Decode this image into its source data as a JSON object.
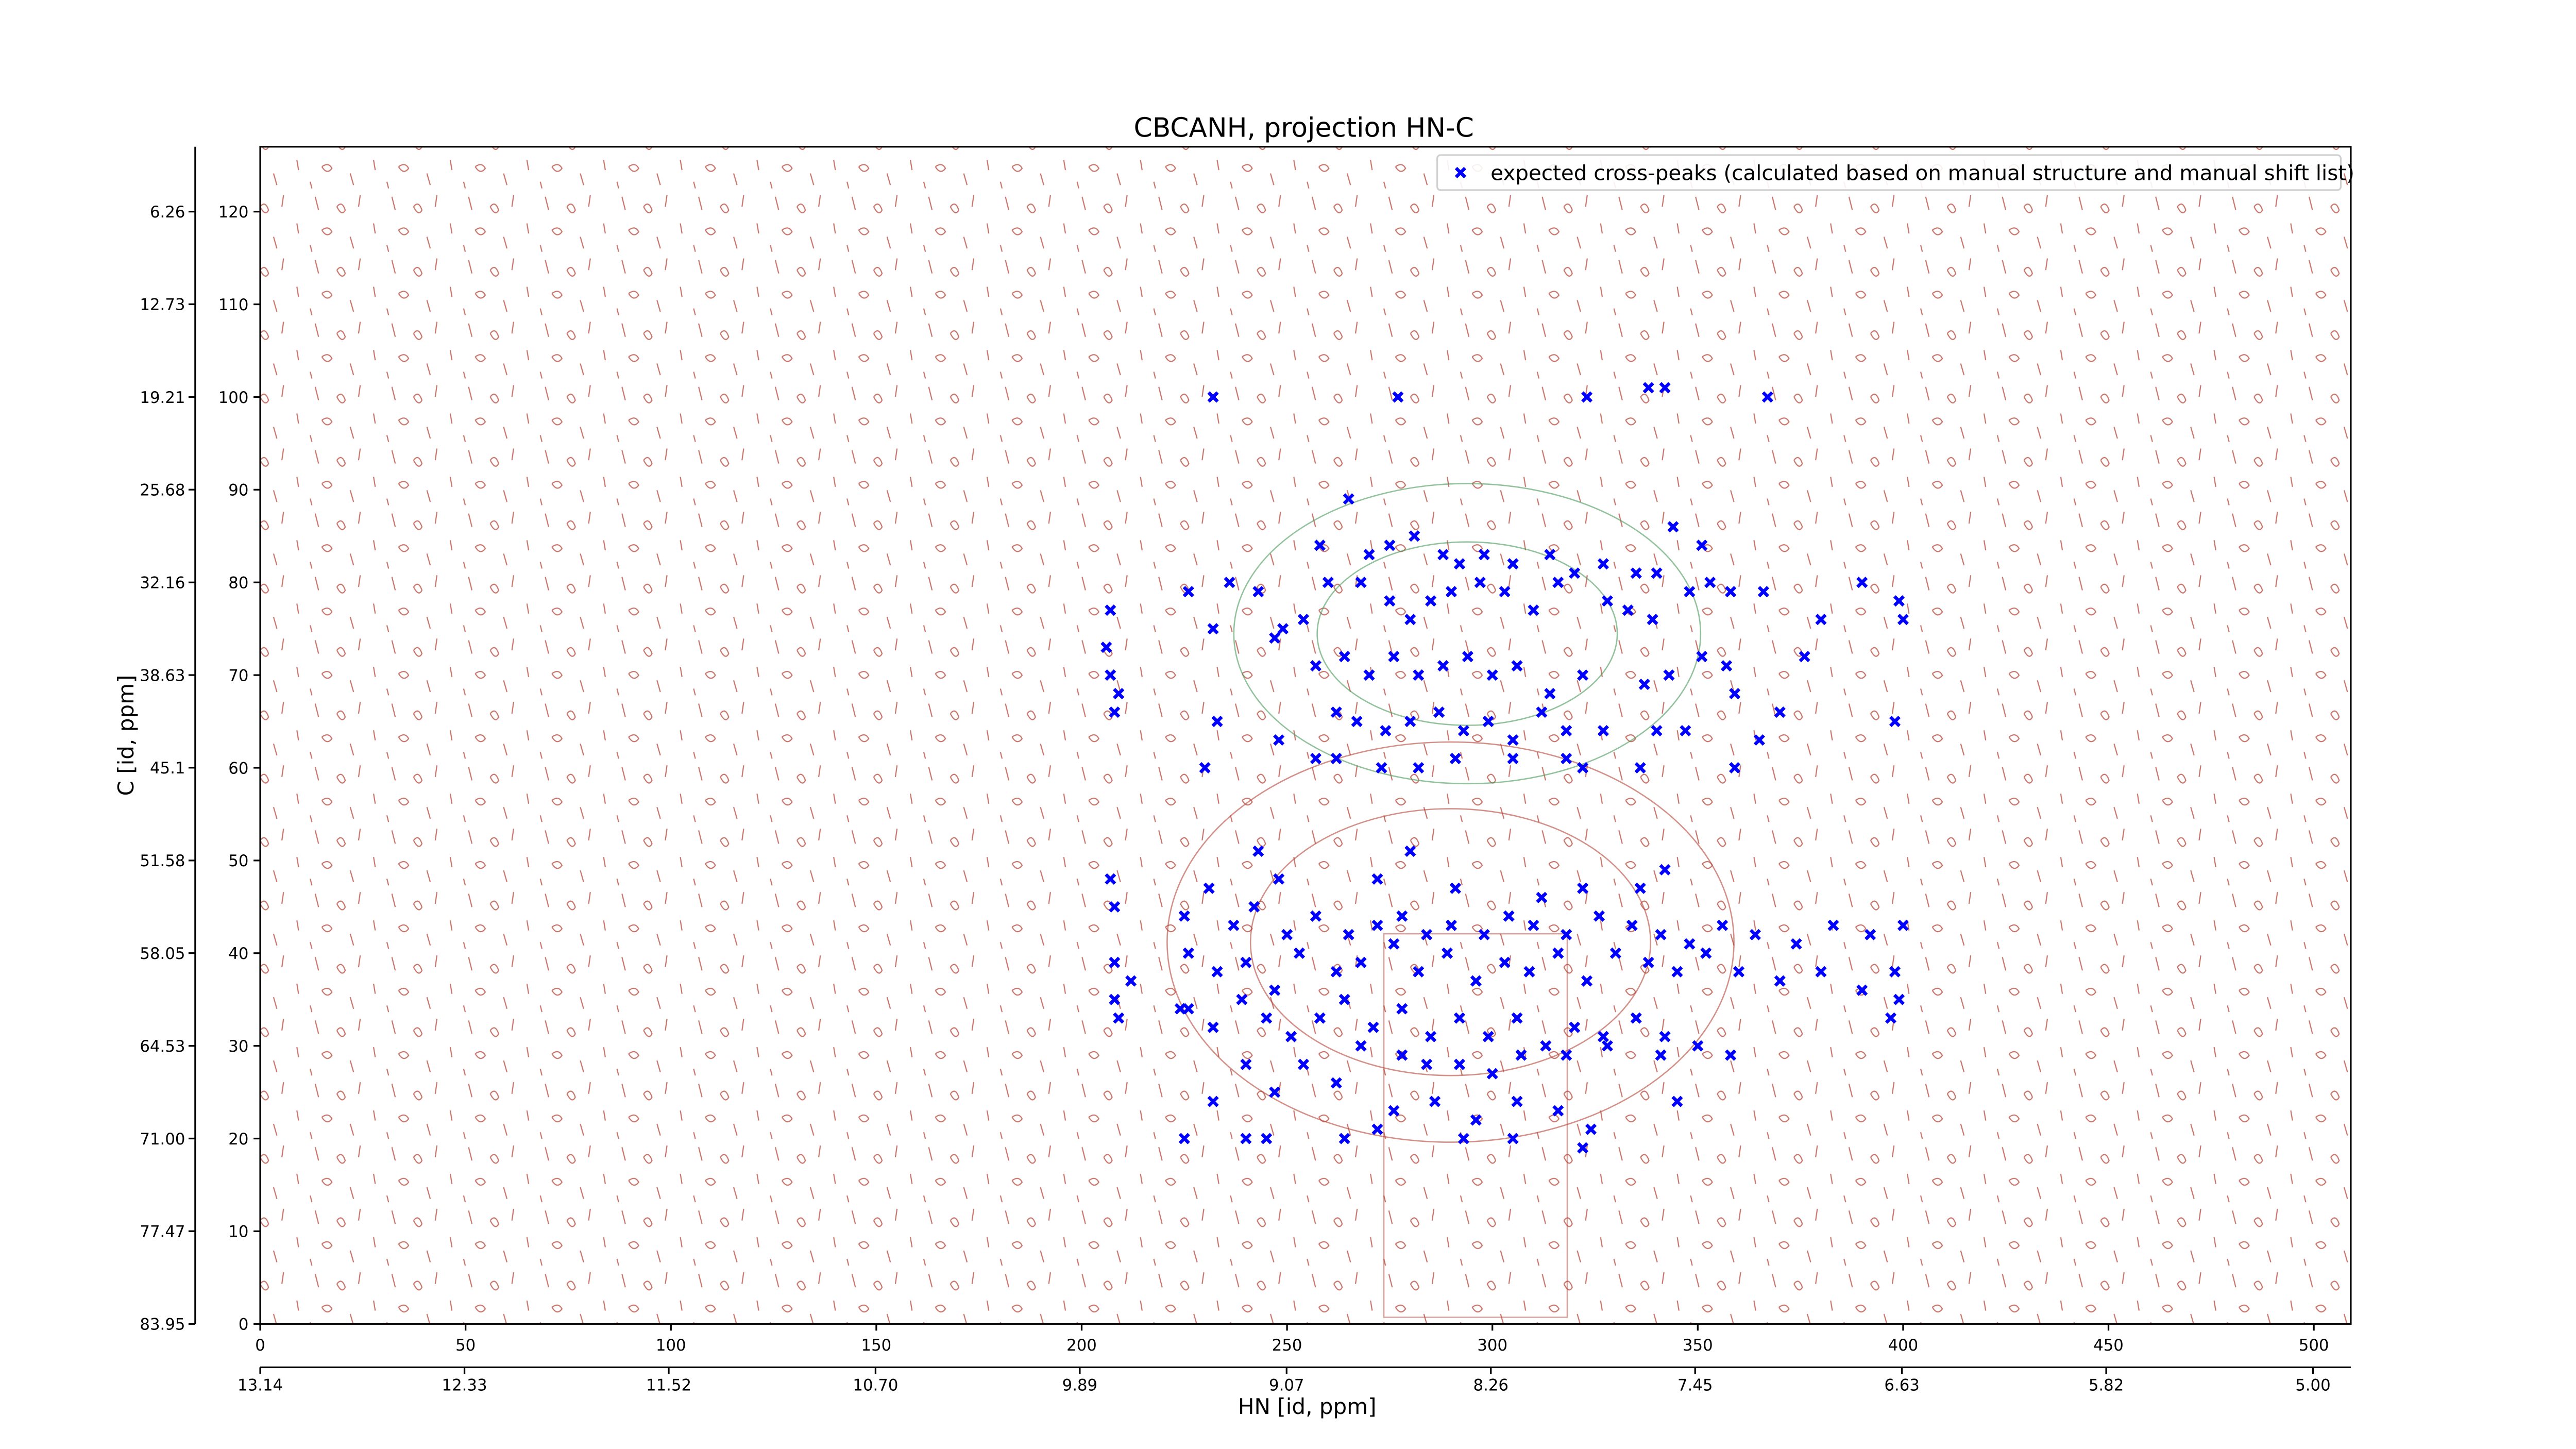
{
  "chart_data": {
    "type": "scatter",
    "title": "CBCANH, projection HN-C",
    "xlabel": "HN [id, ppm]",
    "ylabel": "C [id, ppm]",
    "xlim": [
      0,
      509
    ],
    "xticks": [
      0,
      50,
      100,
      150,
      200,
      250,
      300,
      350,
      400,
      450,
      500
    ],
    "ylim": [
      0,
      127
    ],
    "yticks": [
      0,
      10,
      20,
      30,
      40,
      50,
      60,
      70,
      80,
      90,
      100,
      110,
      120
    ],
    "x2lim": [
      13.14,
      4.85
    ],
    "x2ticks": [
      13.14,
      12.33,
      11.52,
      {
        "value": 10.7,
        "label": "10.70"
      },
      9.89,
      9.07,
      8.26,
      7.45,
      6.63,
      5.82,
      {
        "value": 5,
        "label": "5.00"
      }
    ],
    "y2lim": [
      83.95,
      1.73
    ],
    "y2ticks": [
      83.95,
      77.47,
      {
        "value": 71,
        "label": "71.00"
      },
      64.53,
      58.05,
      51.58,
      45.1,
      38.63,
      32.16,
      25.68,
      19.21,
      12.73,
      6.26
    ],
    "legend": "upper right",
    "series": [
      {
        "name": "expected cross-peaks (calculated based on manual structure and manual shift list)",
        "color": "#0000ff",
        "x": [
          232,
          277,
          323,
          338,
          342,
          367,
          265,
          258,
          270,
          275,
          281,
          288,
          292,
          298,
          305,
          314,
          320,
          327,
          335,
          340,
          344,
          351,
          353,
          348,
          358,
          366,
          376,
          380,
          390,
          399,
          400,
          226,
          236,
          232,
          243,
          247,
          254,
          260,
          268,
          275,
          280,
          285,
          290,
          297,
          303,
          310,
          316,
          328,
          333,
          339,
          207,
          206,
          207,
          209,
          208,
          249,
          264,
          257,
          270,
          276,
          282,
          288,
          294,
          300,
          306,
          314,
          322,
          337,
          343,
          351,
          357,
          359,
          370,
          233,
          248,
          262,
          267,
          274,
          280,
          287,
          293,
          299,
          305,
          312,
          318,
          327,
          340,
          347,
          365,
          398,
          230,
          257,
          262,
          273,
          282,
          291,
          305,
          318,
          322,
          336,
          359,
          243,
          231,
          207,
          208,
          242,
          248,
          272,
          280,
          291,
          312,
          322,
          336,
          342,
          225,
          237,
          250,
          257,
          265,
          272,
          278,
          284,
          290,
          298,
          304,
          310,
          318,
          326,
          334,
          341,
          348,
          356,
          364,
          374,
          383,
          392,
          400,
          208,
          212,
          226,
          233,
          240,
          247,
          253,
          262,
          268,
          276,
          282,
          289,
          296,
          303,
          309,
          316,
          323,
          330,
          338,
          345,
          352,
          360,
          370,
          380,
          390,
          398,
          208,
          209,
          226,
          232,
          239,
          245,
          251,
          258,
          264,
          271,
          278,
          285,
          292,
          299,
          306,
          313,
          320,
          327,
          335,
          342,
          350,
          397,
          399,
          224,
          240,
          254,
          268,
          278,
          284,
          292,
          300,
          307,
          318,
          328,
          341,
          358,
          232,
          247,
          262,
          276,
          286,
          296,
          306,
          316,
          324,
          345,
          225,
          240,
          245,
          264,
          272,
          293,
          305,
          322
        ],
        "values": [
          100,
          100,
          100,
          101,
          101,
          100,
          89,
          84,
          83,
          84,
          85,
          83,
          82,
          83,
          82,
          83,
          81,
          82,
          81,
          81,
          86,
          84,
          80,
          79,
          79,
          79,
          72,
          76,
          80,
          78,
          76,
          79,
          80,
          75,
          79,
          74,
          76,
          80,
          80,
          78,
          76,
          78,
          79,
          80,
          79,
          77,
          80,
          78,
          77,
          76,
          77,
          73,
          70,
          68,
          66,
          75,
          72,
          71,
          70,
          72,
          70,
          71,
          72,
          70,
          71,
          68,
          70,
          69,
          70,
          72,
          71,
          68,
          66,
          65,
          63,
          66,
          65,
          64,
          65,
          66,
          64,
          65,
          63,
          66,
          64,
          64,
          64,
          64,
          63,
          65,
          60,
          61,
          61,
          60,
          60,
          61,
          61,
          61,
          60,
          60,
          60,
          51,
          47,
          48,
          45,
          45,
          48,
          48,
          51,
          47,
          46,
          47,
          47,
          49,
          44,
          43,
          42,
          44,
          42,
          43,
          44,
          42,
          43,
          42,
          44,
          43,
          42,
          44,
          43,
          42,
          41,
          43,
          42,
          41,
          43,
          42,
          43,
          39,
          37,
          40,
          38,
          39,
          36,
          40,
          38,
          39,
          41,
          38,
          40,
          37,
          39,
          38,
          40,
          37,
          40,
          39,
          38,
          40,
          38,
          37,
          38,
          36,
          38,
          35,
          33,
          34,
          32,
          35,
          33,
          31,
          33,
          35,
          32,
          34,
          31,
          33,
          31,
          33,
          30,
          32,
          31,
          33,
          31,
          30,
          33,
          35,
          34,
          28,
          28,
          30,
          29,
          28,
          28,
          27,
          29,
          29,
          30,
          29,
          29,
          24,
          25,
          26,
          23,
          24,
          22,
          24,
          23,
          21,
          24,
          20,
          20,
          20,
          20,
          21,
          20,
          20,
          19
        ]
      }
    ]
  }
}
